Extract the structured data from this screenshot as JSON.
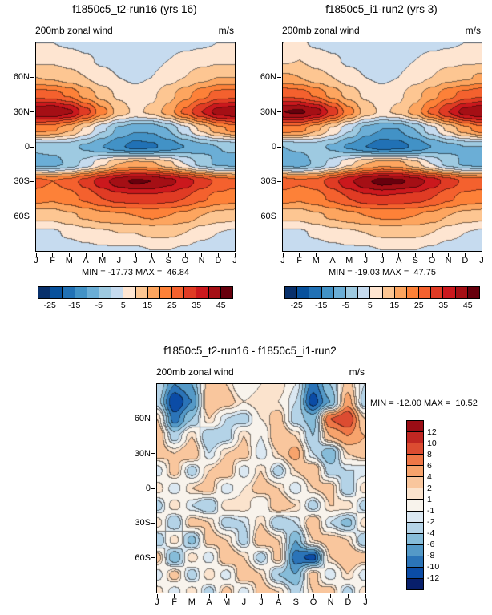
{
  "page": {
    "background": "#ffffff",
    "text_color": "#000000"
  },
  "chart_data": {
    "type": "heatmap",
    "description": "Filled-contour month-vs-latitude panels of 200mb zonal wind (m/s): two model runs and their difference",
    "x_tick_labels": [
      "J",
      "F",
      "M",
      "A",
      "M",
      "J",
      "J",
      "A",
      "S",
      "O",
      "N",
      "D",
      "J"
    ],
    "lat_grid": [
      90,
      75,
      60,
      45,
      30,
      15,
      0,
      -15,
      -30,
      -45,
      -60,
      -75,
      -90
    ],
    "lat_ticks": [
      {
        "label": "60N",
        "lat": 60
      },
      {
        "label": "30N",
        "lat": 30
      },
      {
        "label": "0",
        "lat": 0
      },
      {
        "label": "30S",
        "lat": -30
      },
      {
        "label": "60S",
        "lat": -60
      }
    ],
    "scale_main": {
      "levels": [
        -25,
        -20,
        -15,
        -10,
        -5,
        0,
        5,
        10,
        15,
        20,
        25,
        30,
        35,
        40,
        45
      ],
      "colors": [
        "#08306b",
        "#08519c",
        "#2171b5",
        "#4292c6",
        "#6baed6",
        "#9ecae1",
        "#c6dbef",
        "#fee5d1",
        "#fdc692",
        "#fda55f",
        "#fd8138",
        "#f4612e",
        "#e03b24",
        "#cb181d",
        "#a50f15",
        "#67000d"
      ],
      "labels": [
        "-25",
        "-15",
        "-5",
        "5",
        "15",
        "25",
        "35",
        "45"
      ]
    },
    "scale_diff": {
      "levels": [
        -12,
        -10,
        -8,
        -6,
        -4,
        -2,
        -1,
        1,
        2,
        4,
        6,
        8,
        10,
        12
      ],
      "colors": [
        "#081f6b",
        "#0b4ca6",
        "#2b74b8",
        "#5499c7",
        "#86bcd9",
        "#b4d3e7",
        "#dbe8f2",
        "#f8f3ec",
        "#fbe3cd",
        "#f9c69d",
        "#f7a36c",
        "#ef7747",
        "#dc4c31",
        "#c02722",
        "#9a0d15"
      ],
      "labels": [
        "12",
        "10",
        "8",
        "6",
        "4",
        "2",
        "1",
        "-1",
        "-2",
        "-4",
        "-6",
        "-8",
        "-10",
        "-12"
      ]
    },
    "panels": [
      {
        "title": "f1850c5_t2-run16 (yrs 16)",
        "field_label": "200mb zonal wind",
        "units": "m/s",
        "min": -17.73,
        "max": 46.84,
        "min_max_label": "MIN = -17.73 MAX =  46.84",
        "scale": "scale_main",
        "values": [
          [
            5,
            5,
            4,
            3,
            2,
            1,
            1,
            1,
            2,
            3,
            4,
            5,
            5
          ],
          [
            9,
            9,
            8,
            6,
            4,
            3,
            2,
            3,
            5,
            7,
            8,
            9,
            9
          ],
          [
            15,
            14,
            12,
            10,
            7,
            5,
            4,
            5,
            8,
            10,
            13,
            15,
            15
          ],
          [
            28,
            27,
            24,
            18,
            13,
            9,
            7,
            9,
            13,
            18,
            23,
            27,
            28
          ],
          [
            44,
            45,
            41,
            32,
            22,
            13,
            9,
            11,
            17,
            26,
            35,
            42,
            44
          ],
          [
            22,
            21,
            16,
            9,
            1,
            -6,
            -9,
            -9,
            -5,
            3,
            11,
            18,
            22
          ],
          [
            -4,
            -3,
            -3,
            -6,
            -10,
            -14,
            -17,
            -16,
            -13,
            -10,
            -7,
            -5,
            -4
          ],
          [
            -7,
            -7,
            -4,
            2,
            9,
            15,
            17,
            16,
            12,
            5,
            -2,
            -6,
            -7
          ],
          [
            27,
            25,
            27,
            32,
            38,
            43,
            46,
            45,
            42,
            38,
            33,
            29,
            27
          ],
          [
            22,
            21,
            23,
            26,
            30,
            32,
            33,
            33,
            32,
            30,
            26,
            23,
            22
          ],
          [
            12,
            12,
            14,
            16,
            18,
            19,
            20,
            21,
            20,
            18,
            15,
            13,
            12
          ],
          [
            4,
            4,
            6,
            8,
            9,
            10,
            10,
            11,
            11,
            10,
            7,
            5,
            4
          ],
          [
            1,
            1,
            2,
            3,
            4,
            4,
            4,
            5,
            5,
            4,
            2,
            1,
            1
          ]
        ]
      },
      {
        "title": "f1850c5_i1-run2 (yrs 3)",
        "field_label": "200mb zonal wind",
        "units": "m/s",
        "min": -19.03,
        "max": 47.75,
        "min_max_label": "MIN = -19.03 MAX =  47.75",
        "scale": "scale_main",
        "values": [
          [
            5,
            6,
            4,
            3,
            2,
            1,
            1,
            1,
            2,
            3,
            4,
            5,
            5
          ],
          [
            9,
            10,
            8,
            6,
            4,
            3,
            2,
            3,
            5,
            7,
            8,
            9,
            9
          ],
          [
            16,
            15,
            12,
            10,
            7,
            5,
            4,
            5,
            8,
            10,
            13,
            14,
            16
          ],
          [
            29,
            28,
            24,
            18,
            13,
            9,
            7,
            9,
            13,
            18,
            23,
            27,
            29
          ],
          [
            45,
            46,
            42,
            33,
            22,
            13,
            9,
            11,
            17,
            26,
            35,
            42,
            45
          ],
          [
            23,
            22,
            16,
            9,
            1,
            -7,
            -10,
            -10,
            -5,
            3,
            11,
            18,
            23
          ],
          [
            -5,
            -4,
            -3,
            -6,
            -11,
            -15,
            -18,
            -17,
            -14,
            -10,
            -7,
            -5,
            -5
          ],
          [
            -8,
            -8,
            -4,
            2,
            9,
            15,
            18,
            17,
            12,
            5,
            -2,
            -6,
            -8
          ],
          [
            28,
            26,
            27,
            33,
            39,
            44,
            47,
            46,
            43,
            38,
            33,
            29,
            28
          ],
          [
            22,
            21,
            23,
            26,
            30,
            33,
            34,
            33,
            32,
            30,
            26,
            23,
            22
          ],
          [
            12,
            12,
            14,
            16,
            18,
            20,
            21,
            21,
            20,
            18,
            15,
            13,
            12
          ],
          [
            4,
            4,
            6,
            8,
            9,
            10,
            11,
            11,
            11,
            10,
            7,
            5,
            4
          ],
          [
            1,
            1,
            2,
            3,
            4,
            4,
            5,
            5,
            5,
            4,
            2,
            1,
            1
          ]
        ]
      },
      {
        "title": "f1850c5_t2-run16 - f1850c5_i1-run2",
        "field_label": "200mb zonal wind",
        "units": "m/s",
        "min": -12.0,
        "max": 10.52,
        "min_max_label": "MIN = -12.00 MAX =  10.52",
        "scale": "scale_diff",
        "values": [
          [
            -2,
            -8,
            -6,
            3,
            2,
            -1,
            1,
            2,
            -1,
            -9,
            -4,
            3,
            -2
          ],
          [
            -3,
            -12,
            -8,
            4,
            3,
            1,
            2,
            1,
            -2,
            -11,
            -6,
            5,
            -3
          ],
          [
            2,
            -9,
            -4,
            2,
            -2,
            -3,
            1,
            3,
            -3,
            -5,
            8,
            10,
            2
          ],
          [
            4,
            -3,
            2,
            -4,
            -3,
            2,
            -1,
            4,
            2,
            -4,
            4,
            6,
            4
          ],
          [
            3,
            2,
            4,
            -2,
            2,
            3,
            -2,
            2,
            5,
            -2,
            -6,
            2,
            3
          ],
          [
            -2,
            3,
            -3,
            2,
            4,
            -2,
            2,
            -3,
            2,
            4,
            -3,
            -2,
            -2
          ],
          [
            2,
            -2,
            2,
            3,
            -2,
            1,
            3,
            2,
            -2,
            2,
            3,
            -4,
            2
          ],
          [
            -3,
            2,
            -2,
            -4,
            2,
            2,
            -1,
            4,
            2,
            -3,
            2,
            2,
            -3
          ],
          [
            2,
            -4,
            3,
            2,
            -3,
            -2,
            2,
            -4,
            -2,
            4,
            -2,
            -5,
            2
          ],
          [
            -4,
            2,
            -5,
            3,
            2,
            -3,
            4,
            2,
            -6,
            2,
            3,
            2,
            -4
          ],
          [
            3,
            -6,
            2,
            -2,
            4,
            2,
            -3,
            3,
            -9,
            -11,
            2,
            4,
            3
          ],
          [
            -2,
            3,
            -3,
            2,
            -2,
            4,
            2,
            -4,
            -6,
            3,
            -2,
            2,
            -2
          ],
          [
            2,
            -2,
            2,
            -3,
            3,
            -2,
            3,
            2,
            -3,
            2,
            3,
            -3,
            2
          ]
        ]
      }
    ]
  }
}
